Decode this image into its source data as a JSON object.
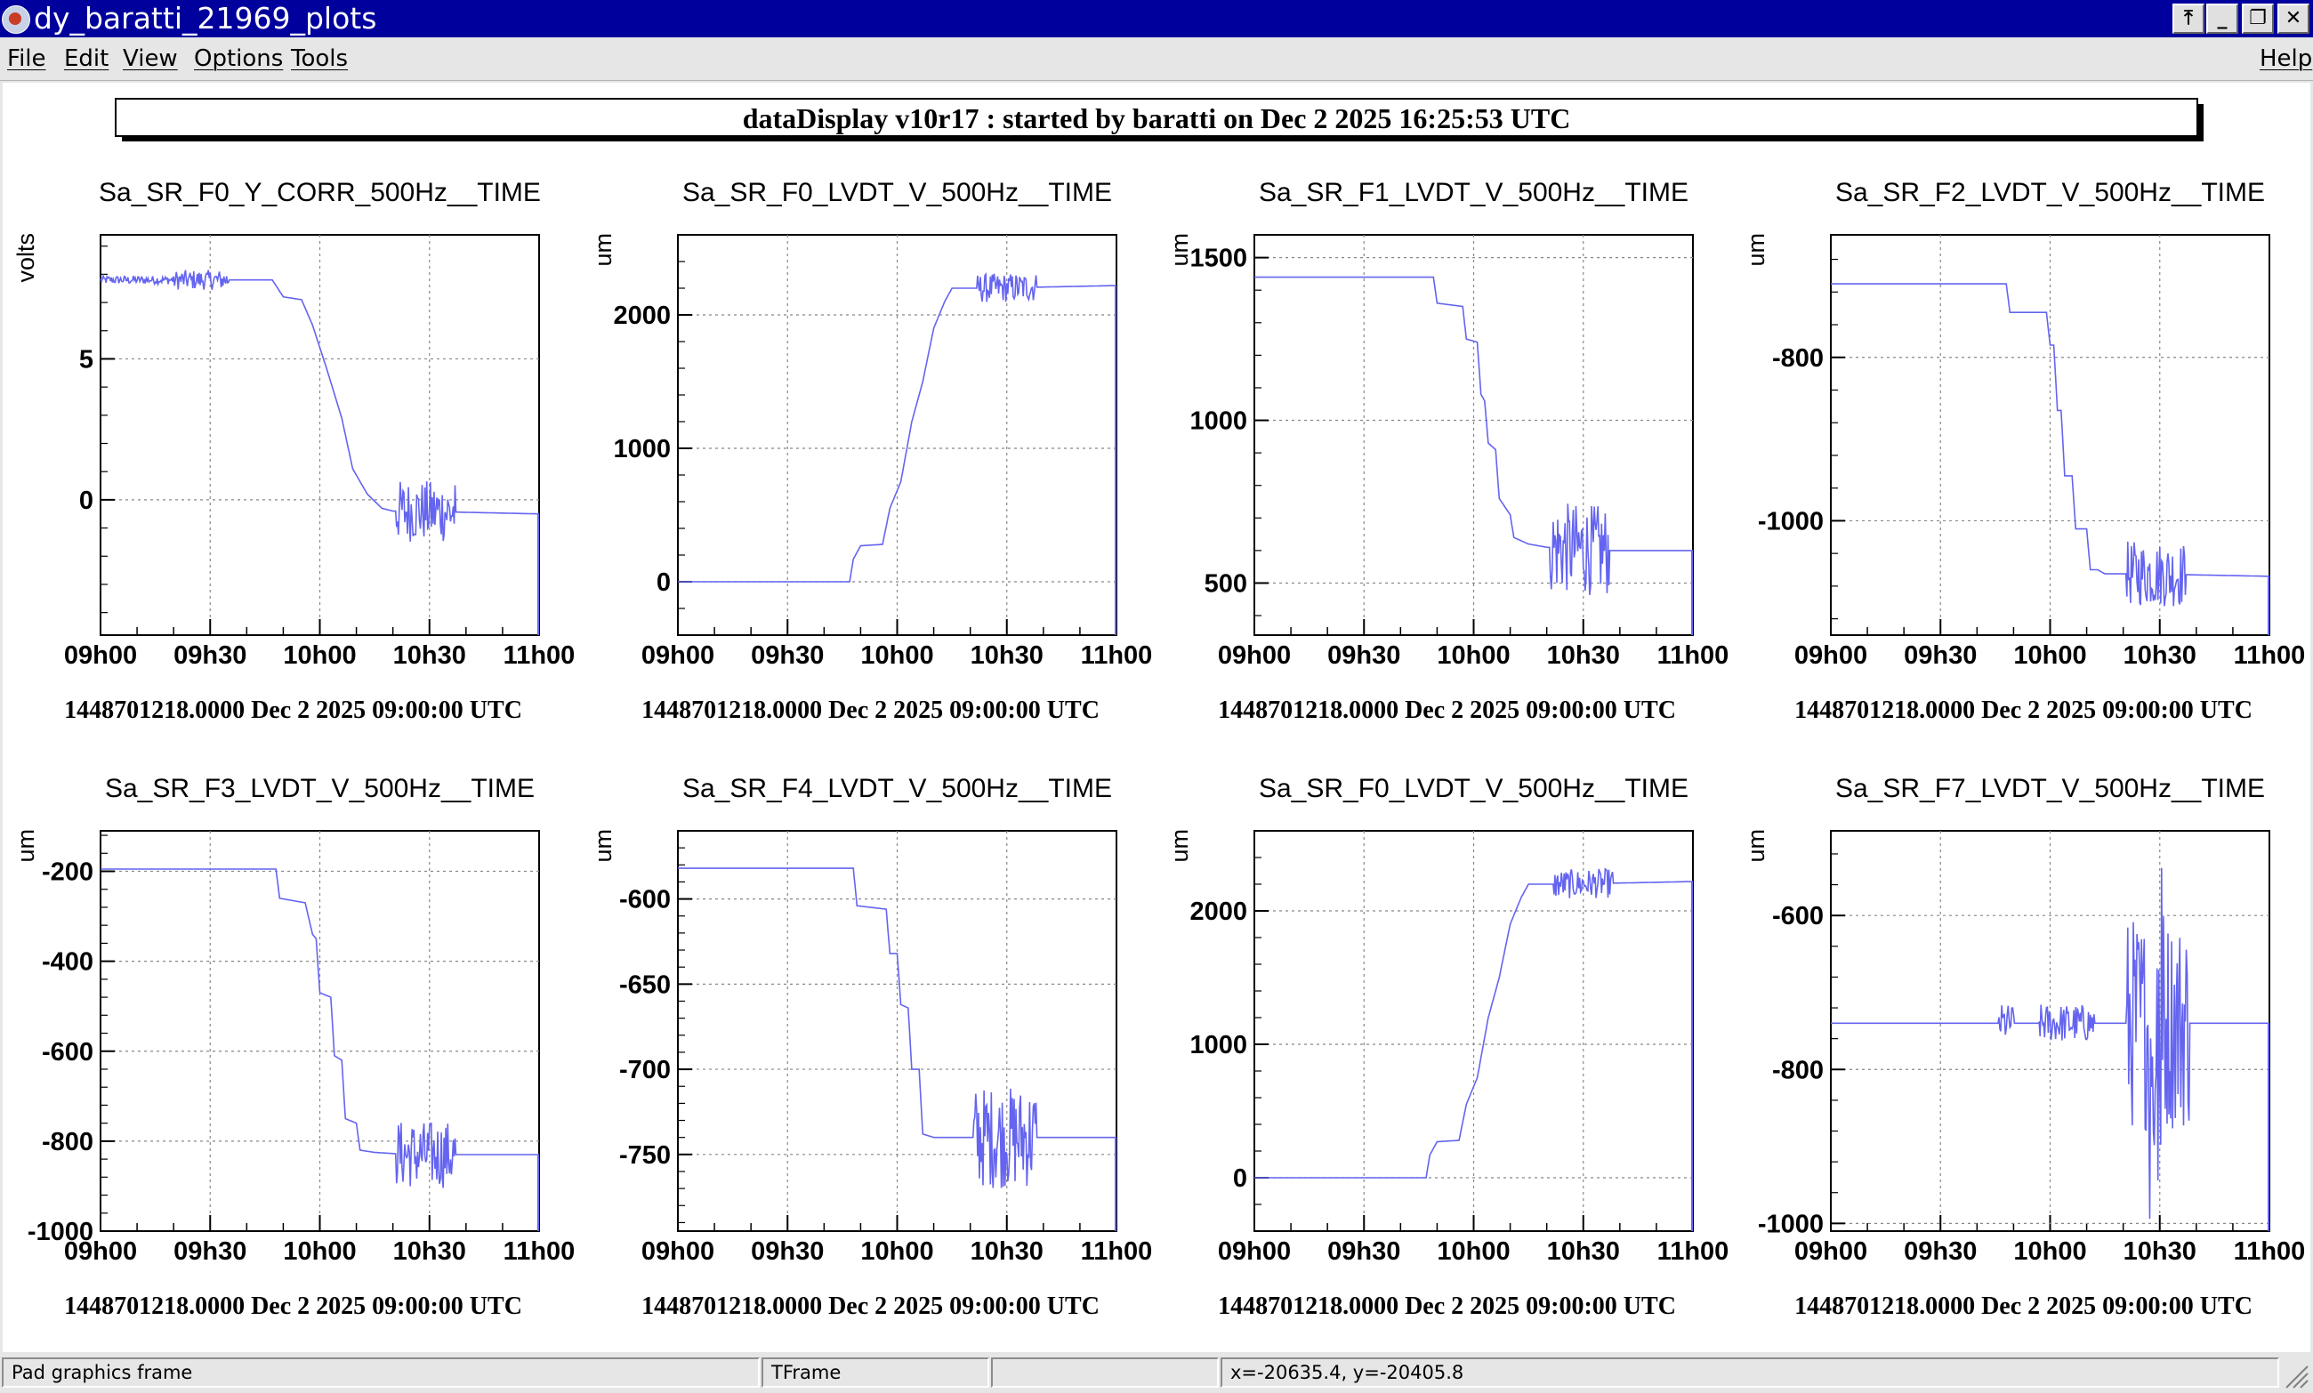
{
  "window": {
    "title": "dy_baratti_21969_plots",
    "buttons": [
      "⤒",
      "_",
      "❐",
      "✕"
    ]
  },
  "menu": {
    "left": [
      "File",
      "Edit",
      "View",
      "Options",
      "Tools"
    ],
    "right": "Help"
  },
  "canvas": {
    "banner": "dataDisplay v10r17 : started by baratti on Dec  2 2025 16:25:53 UTC"
  },
  "status": {
    "object_info": "Pad graphics frame",
    "object_class": "TFrame",
    "extra": "",
    "coords": "x=-20635.4, y=-20405.8"
  },
  "chart_data": [
    {
      "type": "line",
      "title": "Sa_SR_F0_Y_CORR_500Hz__TIME",
      "ylabel": "volts",
      "xlabel": "1448701218.0000 Dec 2 2025 09:00:00 UTC",
      "x_ticks": [
        "09h00",
        "09h30",
        "10h00",
        "10h30",
        "11h00"
      ],
      "x_range_minutes": [
        0,
        120
      ],
      "ylim": [
        -4.8,
        9.4
      ],
      "y_ticks": [
        0,
        5
      ],
      "series": [
        {
          "color": "#6464f0",
          "points": [
            [
              0,
              7.8
            ],
            [
              20,
              7.8
            ],
            [
              47,
              7.8
            ],
            [
              50,
              7.2
            ],
            [
              55,
              7.1
            ],
            [
              58,
              6.2
            ],
            [
              62,
              4.6
            ],
            [
              66,
              2.9
            ],
            [
              69,
              1.1
            ],
            [
              73,
              0.2
            ],
            [
              77,
              -0.3
            ],
            [
              80,
              -0.4
            ],
            [
              85,
              -0.4
            ],
            [
              120,
              -0.5
            ]
          ]
        }
      ],
      "noise": [
        {
          "from": 20,
          "to": 35,
          "amp": 0.35
        },
        {
          "from": 81,
          "to": 97,
          "amp": 1.1
        },
        {
          "from": 0,
          "to": 20,
          "amp": 0.15
        }
      ],
      "vline_end": true
    },
    {
      "type": "line",
      "title": "Sa_SR_F0_LVDT_V_500Hz__TIME",
      "ylabel": "um",
      "xlabel": "1448701218.0000 Dec 2 2025 09:00:00 UTC",
      "x_ticks": [
        "09h00",
        "09h30",
        "10h00",
        "10h30",
        "11h00"
      ],
      "x_range_minutes": [
        0,
        120
      ],
      "ylim": [
        -400,
        2600
      ],
      "y_ticks": [
        0,
        1000,
        2000
      ],
      "series": [
        {
          "color": "#6464f0",
          "points": [
            [
              0,
              0
            ],
            [
              47,
              0
            ],
            [
              48,
              170
            ],
            [
              50,
              270
            ],
            [
              56,
              280
            ],
            [
              58,
              550
            ],
            [
              61,
              750
            ],
            [
              64,
              1200
            ],
            [
              67,
              1500
            ],
            [
              70,
              1900
            ],
            [
              73,
              2100
            ],
            [
              75,
              2200
            ],
            [
              85,
              2200
            ],
            [
              120,
              2220
            ]
          ]
        }
      ],
      "noise": [
        {
          "from": 82,
          "to": 98,
          "amp": 110
        }
      ],
      "vline_end": true
    },
    {
      "type": "line",
      "title": "Sa_SR_F1_LVDT_V_500Hz__TIME",
      "ylabel": "um",
      "xlabel": "1448701218.0000 Dec 2 2025 09:00:00 UTC",
      "x_ticks": [
        "09h00",
        "09h30",
        "10h00",
        "10h30",
        "11h00"
      ],
      "x_range_minutes": [
        0,
        120
      ],
      "ylim": [
        340,
        1570
      ],
      "y_ticks": [
        500,
        1000,
        1500
      ],
      "series": [
        {
          "color": "#6464f0",
          "points": [
            [
              0,
              1440
            ],
            [
              49,
              1440
            ],
            [
              50,
              1360
            ],
            [
              57,
              1350
            ],
            [
              58,
              1250
            ],
            [
              61,
              1240
            ],
            [
              62,
              1080
            ],
            [
              63,
              1060
            ],
            [
              64,
              930
            ],
            [
              66,
              910
            ],
            [
              67,
              760
            ],
            [
              70,
              710
            ],
            [
              71,
              640
            ],
            [
              75,
              620
            ],
            [
              80,
              610
            ],
            [
              95,
              600
            ],
            [
              120,
              600
            ]
          ]
        }
      ],
      "noise": [
        {
          "from": 81,
          "to": 97,
          "amp": 140
        }
      ],
      "vline_end": true
    },
    {
      "type": "line",
      "title": "Sa_SR_F2_LVDT_V_500Hz__TIME",
      "ylabel": "um",
      "xlabel": "1448701218.0000 Dec 2 2025 09:00:00 UTC",
      "x_ticks": [
        "09h00",
        "09h30",
        "10h00",
        "10h30",
        "11h00"
      ],
      "x_range_minutes": [
        0,
        120
      ],
      "ylim": [
        -1140,
        -650
      ],
      "y_ticks": [
        -800,
        -1000
      ],
      "series": [
        {
          "color": "#6464f0",
          "points": [
            [
              0,
              -710
            ],
            [
              48,
              -710
            ],
            [
              49,
              -745
            ],
            [
              54,
              -745
            ],
            [
              59,
              -745
            ],
            [
              60,
              -785
            ],
            [
              61,
              -785
            ],
            [
              62,
              -865
            ],
            [
              63,
              -865
            ],
            [
              64,
              -945
            ],
            [
              66,
              -945
            ],
            [
              67,
              -1010
            ],
            [
              70,
              -1010
            ],
            [
              71,
              -1060
            ],
            [
              73,
              -1060
            ],
            [
              75,
              -1065
            ],
            [
              85,
              -1065
            ],
            [
              120,
              -1068
            ]
          ]
        }
      ],
      "noise": [
        {
          "from": 81,
          "to": 97,
          "amp": 40
        }
      ],
      "vline_end": true
    },
    {
      "type": "line",
      "title": "Sa_SR_F3_LVDT_V_500Hz__TIME",
      "ylabel": "um",
      "xlabel": "1448701218.0000 Dec 2 2025 09:00:00 UTC",
      "x_ticks": [
        "09h00",
        "09h30",
        "10h00",
        "10h30",
        "11h00"
      ],
      "x_range_minutes": [
        0,
        120
      ],
      "ylim": [
        -1000,
        -110
      ],
      "y_ticks": [
        -200,
        -400,
        -600,
        -800,
        -1000
      ],
      "series": [
        {
          "color": "#6464f0",
          "points": [
            [
              0,
              -195
            ],
            [
              48,
              -195
            ],
            [
              49,
              -260
            ],
            [
              56,
              -270
            ],
            [
              58,
              -340
            ],
            [
              59,
              -350
            ],
            [
              60,
              -470
            ],
            [
              63,
              -480
            ],
            [
              64,
              -610
            ],
            [
              66,
              -620
            ],
            [
              67,
              -750
            ],
            [
              70,
              -760
            ],
            [
              71,
              -820
            ],
            [
              75,
              -825
            ],
            [
              85,
              -830
            ],
            [
              120,
              -830
            ]
          ]
        }
      ],
      "noise": [
        {
          "from": 81,
          "to": 97,
          "amp": 75
        }
      ],
      "vline_end": true
    },
    {
      "type": "line",
      "title": "Sa_SR_F4_LVDT_V_500Hz__TIME",
      "ylabel": "um",
      "xlabel": "1448701218.0000 Dec 2 2025 09:00:00 UTC",
      "x_ticks": [
        "09h00",
        "09h30",
        "10h00",
        "10h30",
        "11h00"
      ],
      "x_range_minutes": [
        0,
        120
      ],
      "ylim": [
        -795,
        -560
      ],
      "y_ticks": [
        -600,
        -650,
        -700,
        -750
      ],
      "series": [
        {
          "color": "#6464f0",
          "points": [
            [
              0,
              -582
            ],
            [
              48,
              -582
            ],
            [
              49,
              -604
            ],
            [
              57,
              -606
            ],
            [
              58,
              -632
            ],
            [
              60,
              -632
            ],
            [
              61,
              -662
            ],
            [
              63,
              -664
            ],
            [
              64,
              -700
            ],
            [
              66,
              -700
            ],
            [
              67,
              -738
            ],
            [
              70,
              -740
            ],
            [
              85,
              -740
            ],
            [
              120,
              -740
            ]
          ]
        }
      ],
      "noise": [
        {
          "from": 81,
          "to": 98,
          "amp": 30
        }
      ],
      "vline_end": true
    },
    {
      "type": "line",
      "title": "Sa_SR_F0_LVDT_V_500Hz__TIME",
      "ylabel": "um",
      "xlabel": "1448701218.0000 Dec 2 2025 09:00:00 UTC",
      "x_ticks": [
        "09h00",
        "09h30",
        "10h00",
        "10h30",
        "11h00"
      ],
      "x_range_minutes": [
        0,
        120
      ],
      "ylim": [
        -400,
        2600
      ],
      "y_ticks": [
        0,
        1000,
        2000
      ],
      "series": [
        {
          "color": "#6464f0",
          "points": [
            [
              0,
              0
            ],
            [
              47,
              0
            ],
            [
              48,
              170
            ],
            [
              50,
              270
            ],
            [
              56,
              280
            ],
            [
              58,
              550
            ],
            [
              61,
              750
            ],
            [
              64,
              1200
            ],
            [
              67,
              1500
            ],
            [
              70,
              1900
            ],
            [
              73,
              2100
            ],
            [
              75,
              2200
            ],
            [
              85,
              2200
            ],
            [
              120,
              2220
            ]
          ]
        }
      ],
      "noise": [
        {
          "from": 82,
          "to": 98,
          "amp": 110
        }
      ],
      "vline_end": true
    },
    {
      "type": "line",
      "title": "Sa_SR_F7_LVDT_V_500Hz__TIME",
      "ylabel": "um",
      "xlabel": "1448701218.0000 Dec 2 2025 09:00:00 UTC",
      "x_ticks": [
        "09h00",
        "09h30",
        "10h00",
        "10h30",
        "11h00"
      ],
      "x_range_minutes": [
        0,
        120
      ],
      "ylim": [
        -1010,
        -490
      ],
      "y_ticks": [
        -600,
        -800,
        -1000
      ],
      "series": [
        {
          "color": "#6464f0",
          "points": [
            [
              0,
              -740
            ],
            [
              120,
              -740
            ]
          ]
        }
      ],
      "noise": [
        {
          "from": 46,
          "to": 50,
          "amp": 25
        },
        {
          "from": 57,
          "to": 72,
          "amp": 25
        },
        {
          "from": 81,
          "to": 98,
          "amp": 140
        },
        {
          "from": 87,
          "to": 91,
          "amp": 230
        }
      ],
      "vline_end": true
    }
  ]
}
